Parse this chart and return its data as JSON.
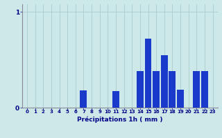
{
  "categories": [
    0,
    1,
    2,
    3,
    4,
    5,
    6,
    7,
    8,
    9,
    10,
    11,
    12,
    13,
    14,
    15,
    16,
    17,
    18,
    19,
    20,
    21,
    22,
    23
  ],
  "values": [
    0,
    0,
    0,
    0,
    0,
    0,
    0,
    0.18,
    0,
    0,
    0,
    0.17,
    0,
    0,
    0.38,
    0.72,
    0.38,
    0.55,
    0.38,
    0.19,
    0,
    0.38,
    0.38,
    0
  ],
  "bar_color": "#1a3acc",
  "bg_color": "#cce8e8",
  "grid_color": "#aacccc",
  "label_color": "#000088",
  "axis_color": "#888899",
  "xlabel": "Précipitations 1h ( mm )",
  "ylim": [
    0,
    1.0
  ],
  "yticks": [
    0,
    1
  ],
  "figsize": [
    3.2,
    2.0
  ],
  "dpi": 100
}
